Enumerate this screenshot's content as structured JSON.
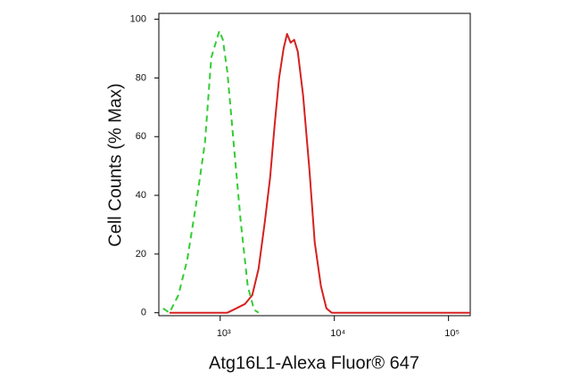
{
  "chart_data": {
    "type": "line",
    "x_label": "Atg16L1-Alexa Fluor® 647",
    "y_label": "Cell Counts (% Max)",
    "xscale": "log",
    "xlim": [
      290,
      155000
    ],
    "ylim": [
      -1,
      102
    ],
    "xticks": [
      {
        "value": 1000,
        "label": "10³"
      },
      {
        "value": 10000,
        "label": "10⁴"
      },
      {
        "value": 100000,
        "label": "10⁵"
      }
    ],
    "yticks": [
      0,
      20,
      40,
      60,
      80,
      100
    ],
    "series": [
      {
        "color": "#33cc33",
        "style": "dashed",
        "x": [
          316,
          359,
          430,
          514,
          615,
          736,
          835,
          898,
          982,
          1055,
          1155,
          1310,
          1514,
          1746,
          1981,
          2168
        ],
        "values": [
          1.5,
          0,
          6,
          18,
          37,
          58,
          87,
          91,
          96,
          93,
          82,
          58,
          31,
          9,
          1,
          0
        ]
      },
      {
        "color": "#d62020",
        "style": "solid",
        "x": [
          359,
          1155,
          1382,
          1654,
          1910,
          2168,
          2459,
          2738,
          2998,
          3279,
          3589,
          3854,
          4141,
          4449,
          4781,
          5329,
          6043,
          6734,
          7638,
          8511,
          9477,
          155000
        ],
        "values": [
          0,
          0,
          1.5,
          3,
          6,
          15,
          31,
          46,
          64,
          80,
          90,
          95,
          92,
          93,
          89,
          74,
          49,
          24,
          9,
          1.5,
          0,
          0
        ]
      }
    ]
  }
}
